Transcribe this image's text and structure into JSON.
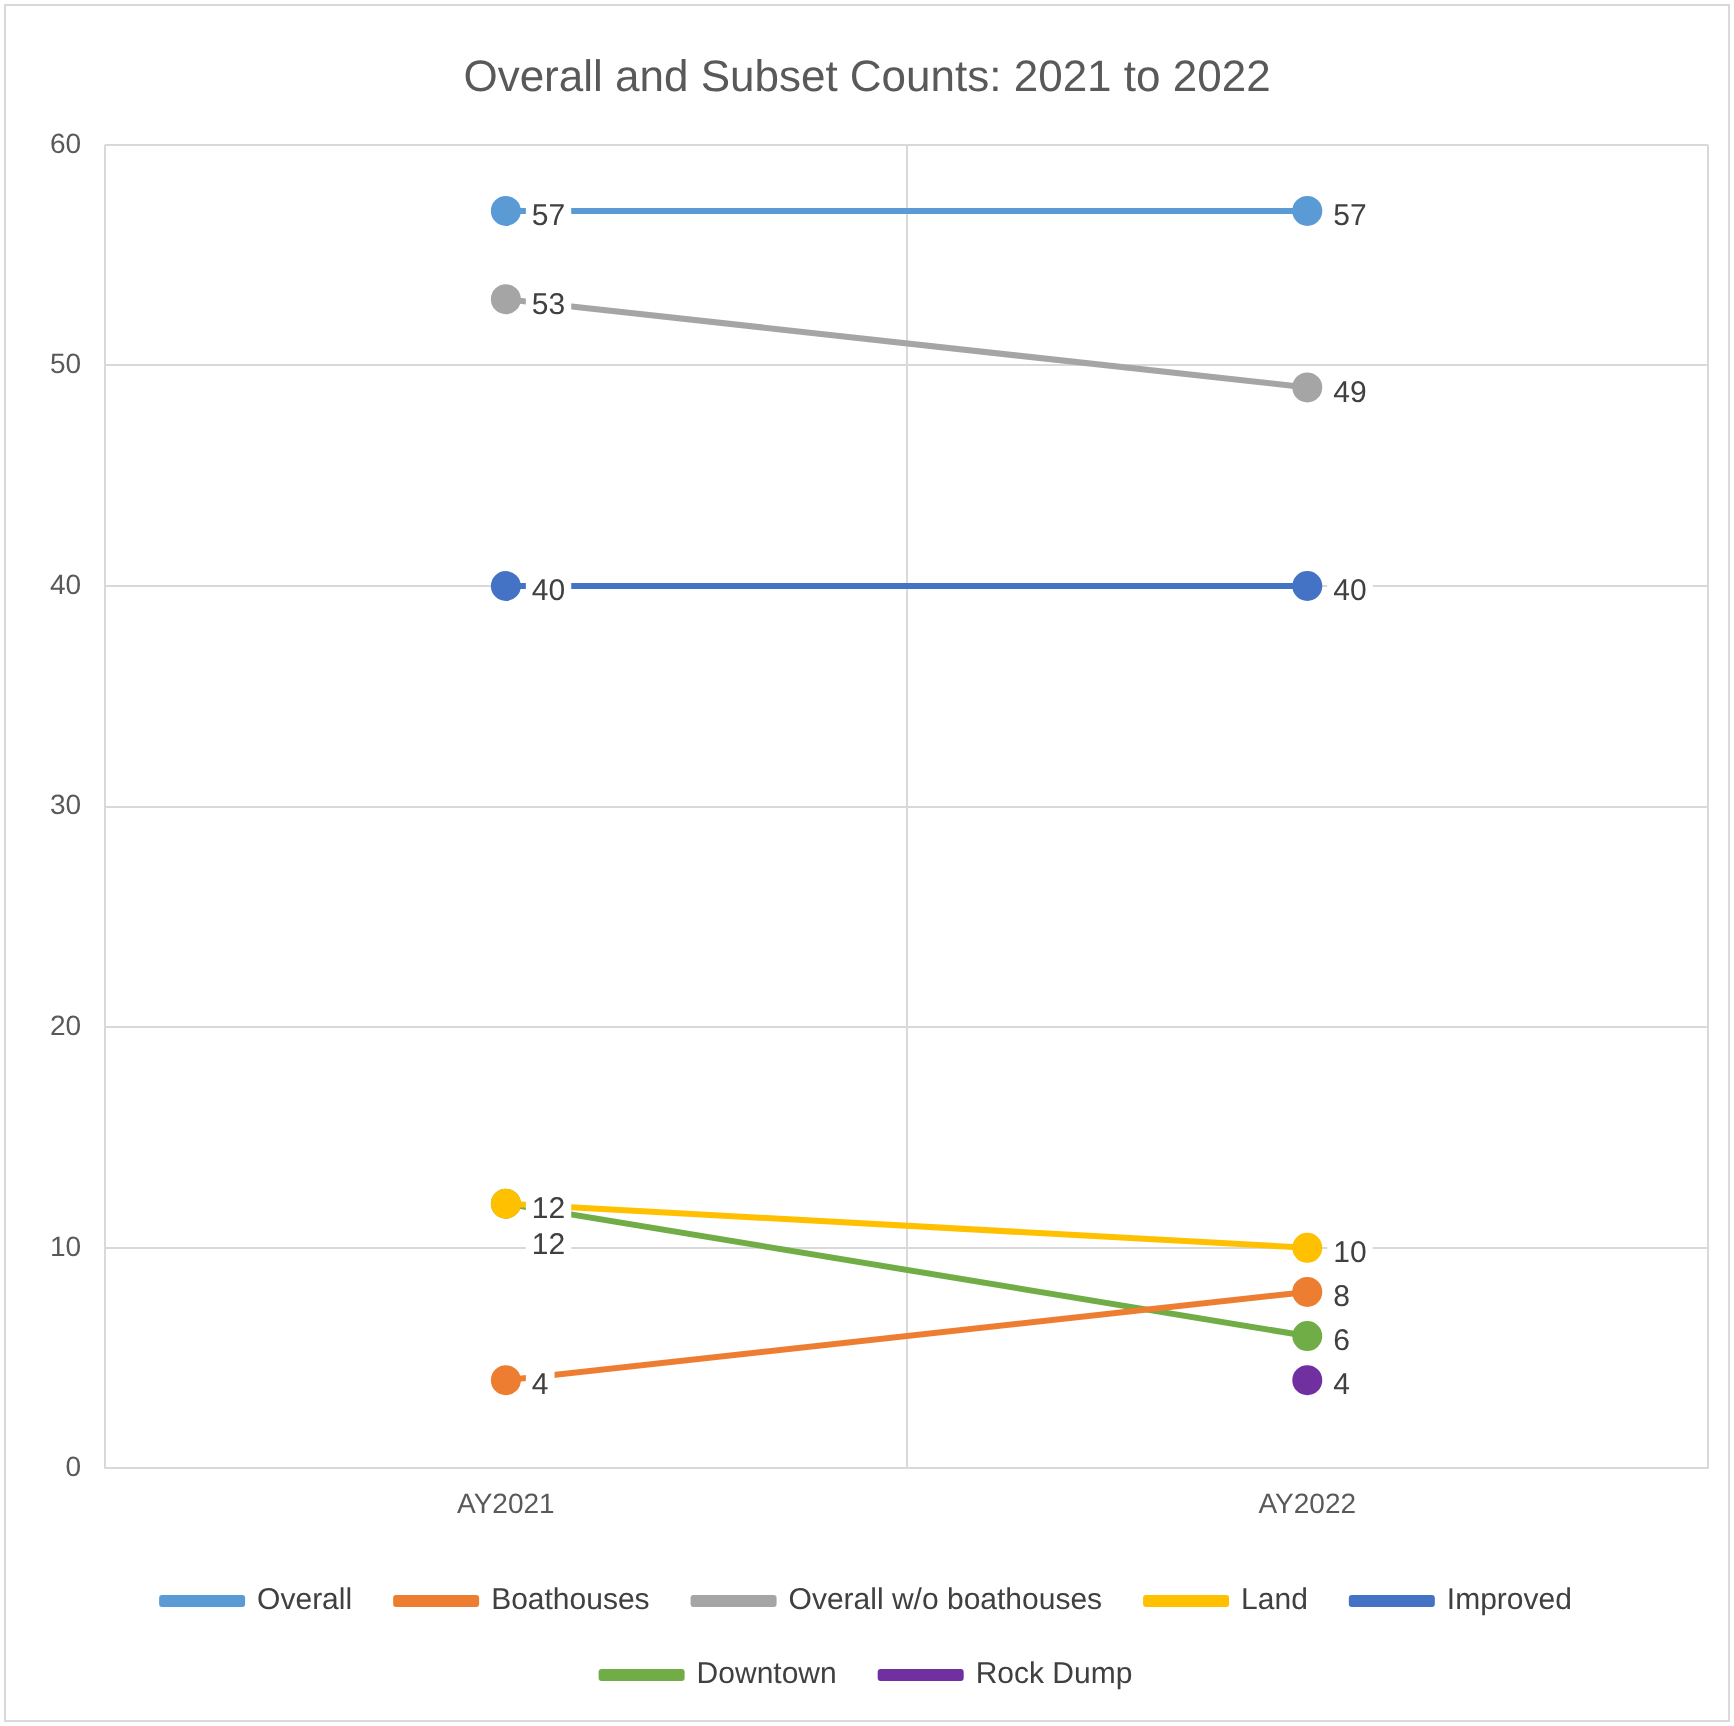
{
  "chart_data": {
    "type": "line",
    "title": "Overall and Subset Counts: 2021 to 2022",
    "categories": [
      "AY2021",
      "AY2022"
    ],
    "series": [
      {
        "name": "Overall",
        "color": "#5b9bd5",
        "values": [
          57,
          57
        ]
      },
      {
        "name": "Boathouses",
        "color": "#ed7d31",
        "values": [
          4,
          8
        ]
      },
      {
        "name": "Overall w/o boathouses",
        "color": "#a5a5a5",
        "values": [
          53,
          49
        ]
      },
      {
        "name": "Land",
        "color": "#ffc000",
        "values": [
          12,
          10
        ]
      },
      {
        "name": "Improved",
        "color": "#4472c4",
        "values": [
          40,
          40
        ]
      },
      {
        "name": "Downtown",
        "color": "#70ad47",
        "values": [
          12,
          6
        ]
      },
      {
        "name": "Rock Dump",
        "color": "#7030a0",
        "values": [
          null,
          4
        ]
      }
    ],
    "ylim": [
      0,
      60
    ],
    "yticks": [
      0,
      10,
      20,
      30,
      40,
      50,
      60
    ],
    "grid": true,
    "legend": "bottom",
    "marker": "circle",
    "line_style": "solid",
    "data_labels": true
  }
}
